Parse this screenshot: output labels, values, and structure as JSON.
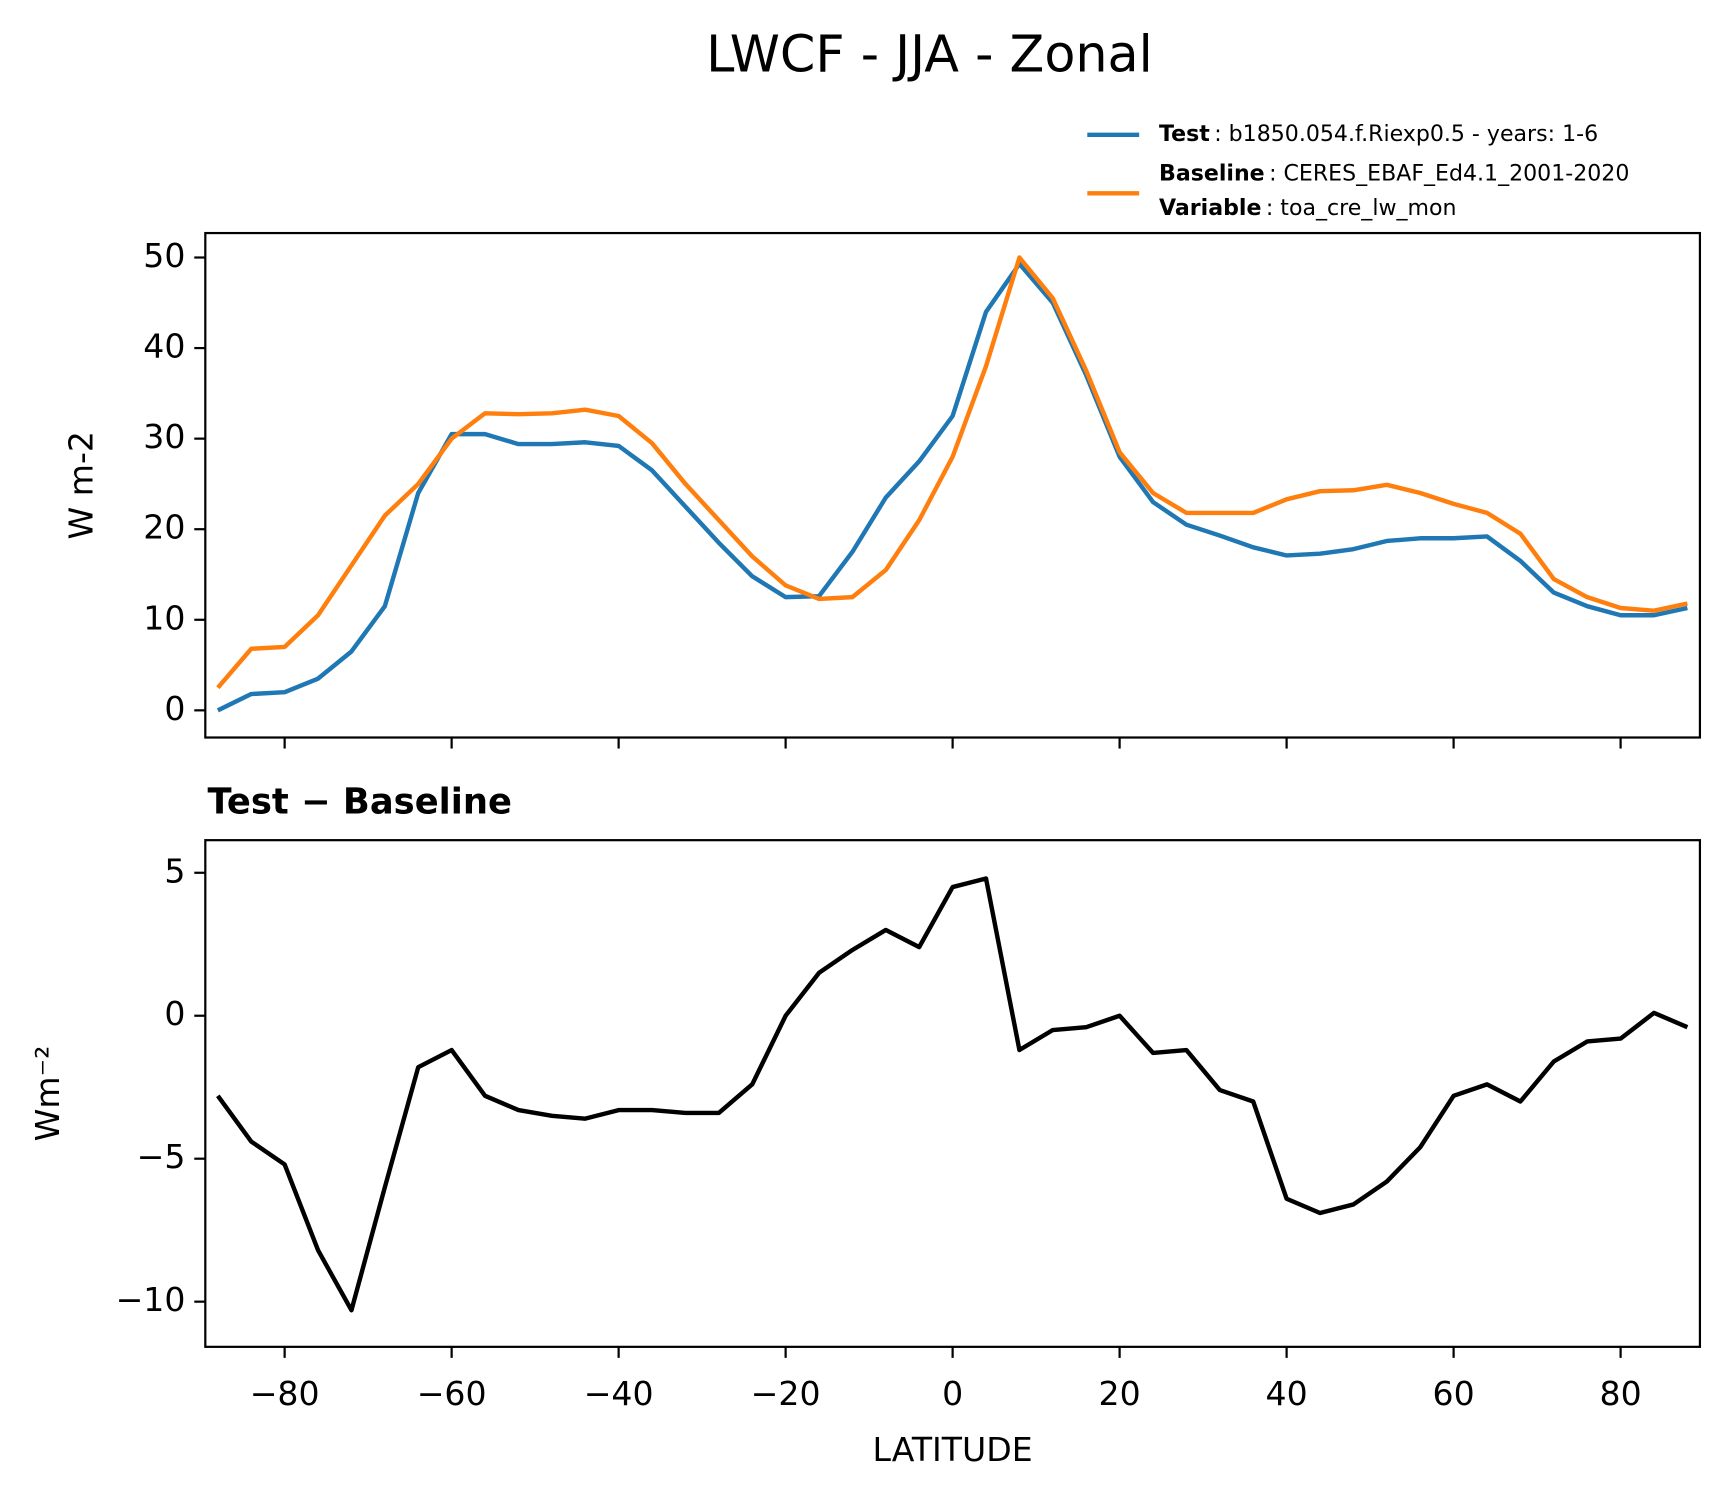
{
  "chart_data": [
    {
      "type": "line",
      "title": "LWCF - JJA - Zonal",
      "ylabel": "W m-2",
      "legend_note": {
        "name": "Variable",
        "label": ": toa_cre_lw_mon"
      },
      "x": [
        -88,
        -84,
        -80,
        -76,
        -72,
        -68,
        -64,
        -60,
        -56,
        -52,
        -48,
        -44,
        -40,
        -36,
        -32,
        -28,
        -24,
        -20,
        -16,
        -12,
        -8,
        -4,
        0,
        4,
        8,
        12,
        16,
        20,
        24,
        28,
        32,
        36,
        40,
        44,
        48,
        52,
        56,
        60,
        64,
        68,
        72,
        76,
        80,
        84,
        88
      ],
      "series": [
        {
          "name": "Test",
          "label": ": b1850.054.f.Riexp0.5 - years: 1-6",
          "color": "#1f77b4",
          "values": [
            0,
            1.8,
            2.0,
            3.5,
            6.5,
            11.5,
            24,
            30.5,
            30.5,
            29.4,
            29.4,
            29.6,
            29.2,
            26.5,
            22.5,
            18.5,
            14.8,
            12.5,
            12.6,
            17.5,
            23.5,
            27.5,
            32.5,
            44,
            49.3,
            45,
            37,
            28,
            23,
            20.5,
            19.3,
            18,
            17.1,
            17.3,
            17.8,
            18.7,
            19,
            19,
            19.2,
            16.5,
            13,
            11.5,
            10.5,
            10.5,
            11.3
          ]
        },
        {
          "name": "Baseline",
          "label": ": CERES_EBAF_Ed4.1_2001-2020",
          "color": "#ff7f0e",
          "values": [
            2.5,
            6.8,
            7.0,
            10.5,
            16.0,
            21.5,
            25,
            30,
            32.8,
            32.7,
            32.8,
            33.2,
            32.5,
            29.5,
            25,
            21,
            17,
            13.8,
            12.3,
            12.5,
            15.5,
            21,
            28,
            38,
            50,
            45.5,
            37.5,
            28.5,
            24,
            21.8,
            21.8,
            21.8,
            23.3,
            24.2,
            24.3,
            24.9,
            24,
            22.8,
            21.8,
            19.5,
            14.5,
            12.5,
            11.3,
            11.0,
            11.8
          ]
        }
      ],
      "xlim": [
        -89.5,
        89.5
      ],
      "ylim": [
        -3,
        52.7
      ],
      "yticks": [
        0,
        10,
        20,
        30,
        40,
        50
      ],
      "xticks": [
        -80,
        -60,
        -40,
        -20,
        0,
        20,
        40,
        60,
        80
      ]
    },
    {
      "type": "line",
      "title": "Test − Baseline",
      "ylabel": "Wm⁻²",
      "xlabel": "LATITUDE",
      "x": [
        -88,
        -84,
        -80,
        -76,
        -72,
        -68,
        -64,
        -60,
        -56,
        -52,
        -48,
        -44,
        -40,
        -36,
        -32,
        -28,
        -24,
        -20,
        -16,
        -12,
        -8,
        -4,
        0,
        4,
        8,
        12,
        16,
        20,
        24,
        28,
        32,
        36,
        40,
        44,
        48,
        52,
        56,
        60,
        64,
        68,
        72,
        76,
        80,
        84,
        88
      ],
      "series": [
        {
          "color": "#000000",
          "values": [
            -2.8,
            -4.4,
            -5.2,
            -8.2,
            -10.3,
            -6,
            -1.8,
            -1.2,
            -2.8,
            -3.3,
            -3.5,
            -3.6,
            -3.3,
            -3.3,
            -3.4,
            -3.4,
            -2.4,
            0,
            1.5,
            2.3,
            3,
            2.4,
            4.5,
            4.8,
            -1.2,
            -0.5,
            -0.4,
            0,
            -1.3,
            -1.2,
            -2.6,
            -3,
            -6.4,
            -6.9,
            -6.6,
            -5.8,
            -4.6,
            -2.8,
            -2.4,
            -3,
            -1.6,
            -0.9,
            -0.8,
            0.1,
            -0.4
          ]
        }
      ],
      "xlim": [
        -89.5,
        89.5
      ],
      "ylim": [
        -11.58,
        6.14
      ],
      "yticks": [
        5,
        0,
        {
          "value": -5,
          "label": "−5"
        },
        {
          "value": -10,
          "label": "−10"
        }
      ],
      "xticks": [
        {
          "value": -80,
          "label": "−80"
        },
        {
          "value": -60,
          "label": "−60"
        },
        {
          "value": -40,
          "label": "−40"
        },
        {
          "value": -20,
          "label": "−20"
        },
        0,
        20,
        40,
        60,
        80
      ]
    }
  ]
}
